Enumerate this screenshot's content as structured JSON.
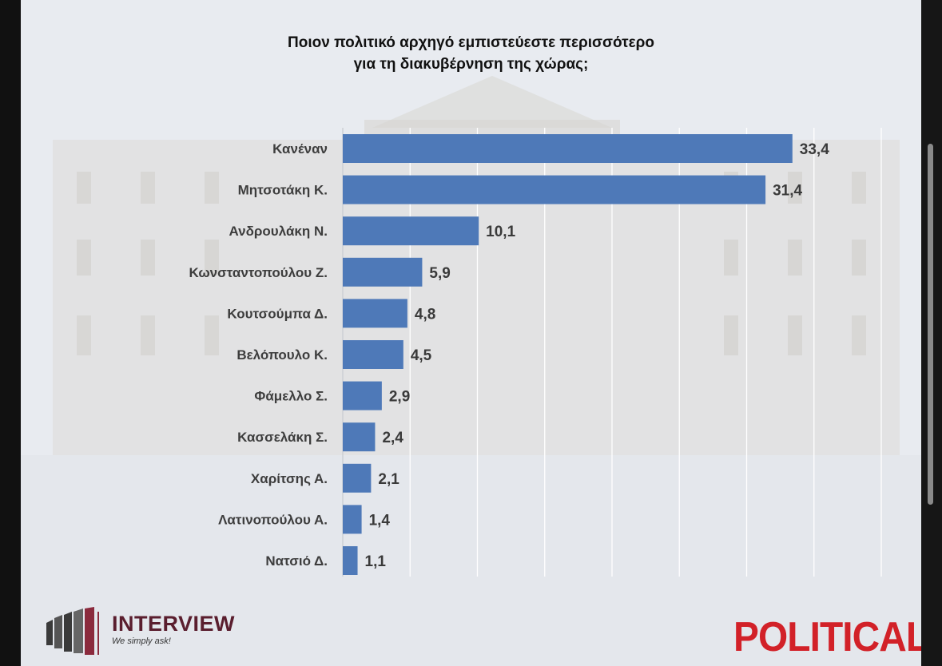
{
  "chart_data": {
    "type": "bar",
    "orientation": "horizontal",
    "title": "Ποιον πολιτικό αρχηγό εμπιστεύεστε περισσότερο",
    "subtitle": "για τη διακυβέρνηση της χώρας;",
    "categories": [
      "Κανέναν",
      "Μητσοτάκη Κ.",
      "Ανδρουλάκη Ν.",
      "Κωνσταντοπούλου Ζ.",
      "Κουτσούμπα Δ.",
      "Βελόπουλο Κ.",
      "Φάμελλο Σ.",
      "Κασσελάκη Σ.",
      "Χαρίτσης Α.",
      "Λατινοπούλου Α.",
      "Νατσιό Δ."
    ],
    "values": [
      33.4,
      31.4,
      10.1,
      5.9,
      4.8,
      4.5,
      2.9,
      2.4,
      2.1,
      1.4,
      1.1
    ],
    "value_labels": [
      "33,4",
      "31,4",
      "10,1",
      "5,9",
      "4,8",
      "4,5",
      "2,9",
      "2,4",
      "2,1",
      "1,4",
      "1,1"
    ],
    "xlim": [
      0,
      40
    ],
    "grid": "vertical",
    "bar_color": "#4e79b8",
    "legend": "none"
  },
  "branding": {
    "interview_name": "INTERVIEW",
    "interview_tagline": "We simply ask!",
    "political_logo": "POLITICAL",
    "interview_color": "#5a1e2e",
    "political_color": "#d22128"
  }
}
